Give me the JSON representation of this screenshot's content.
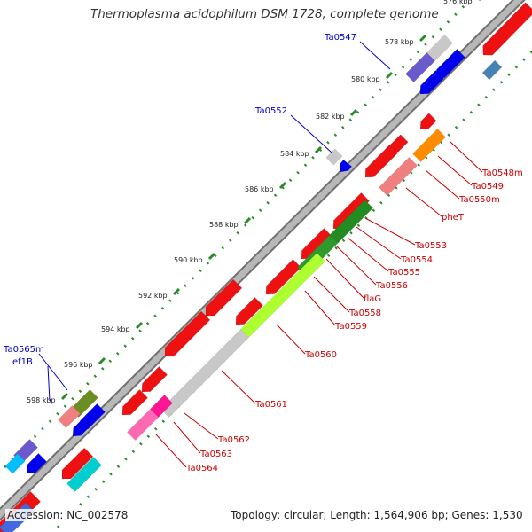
{
  "title": "Thermoplasma acidophilum DSM 1728, complete genome",
  "footer": {
    "accession": "Accession: NC_002578",
    "summary": "Topology: circular; Length: 1,564,906 bp; Genes: 1,530"
  },
  "colors": {
    "backbone": "#b0b0b0",
    "tick": "#2b8a2b",
    "label_forward": "#0000cc",
    "label_reverse": "#cc0000"
  },
  "ticks": [
    "576 kbp",
    "578 kbp",
    "580 kbp",
    "582 kbp",
    "584 kbp",
    "586 kbp",
    "588 kbp",
    "590 kbp",
    "592 kbp",
    "594 kbp",
    "596 kbp",
    "598 kbp"
  ],
  "forward_labels": [
    "Ta0547",
    "Ta0552",
    "Ta0565m",
    "ef1B"
  ],
  "reverse_labels": [
    "Ta0548m",
    "Ta0549",
    "Ta0550m",
    "pheT",
    "Ta0553",
    "Ta0554",
    "Ta0555",
    "Ta0556",
    "flaG",
    "Ta0558",
    "Ta0559",
    "Ta0560",
    "Ta0561",
    "Ta0562",
    "Ta0563",
    "Ta0564"
  ]
}
